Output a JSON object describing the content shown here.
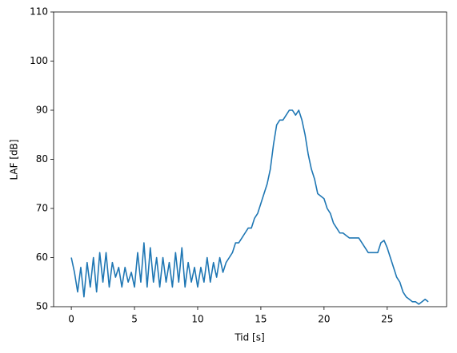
{
  "chart_data": {
    "type": "line",
    "xlabel": "Tid [s]",
    "ylabel": "LAF [dB]",
    "xlim": [
      -1.4,
      29.7
    ],
    "ylim": [
      50,
      110
    ],
    "xticks": [
      0,
      5,
      10,
      15,
      20,
      25
    ],
    "yticks": [
      50,
      60,
      70,
      80,
      90,
      100,
      110
    ],
    "x": [
      0,
      0.25,
      0.5,
      0.75,
      1,
      1.25,
      1.5,
      1.75,
      2,
      2.25,
      2.5,
      2.75,
      3,
      3.25,
      3.5,
      3.75,
      4,
      4.25,
      4.5,
      4.75,
      5,
      5.25,
      5.5,
      5.75,
      6,
      6.25,
      6.5,
      6.75,
      7,
      7.25,
      7.5,
      7.75,
      8,
      8.25,
      8.5,
      8.75,
      9,
      9.25,
      9.5,
      9.75,
      10,
      10.25,
      10.5,
      10.75,
      11,
      11.25,
      11.5,
      11.75,
      12,
      12.25,
      12.5,
      12.75,
      13,
      13.25,
      13.5,
      13.75,
      14,
      14.25,
      14.5,
      14.75,
      15,
      15.25,
      15.5,
      15.75,
      16,
      16.25,
      16.5,
      16.75,
      17,
      17.25,
      17.5,
      17.75,
      18,
      18.25,
      18.5,
      18.75,
      19,
      19.25,
      19.5,
      19.75,
      20,
      20.25,
      20.5,
      20.75,
      21,
      21.25,
      21.5,
      21.75,
      22,
      22.25,
      22.5,
      22.75,
      23,
      23.25,
      23.5,
      23.75,
      24,
      24.25,
      24.5,
      24.75,
      25,
      25.25,
      25.5,
      25.75,
      26,
      26.25,
      26.5,
      26.75,
      27,
      27.25,
      27.5,
      27.75,
      28,
      28.25
    ],
    "series": [
      {
        "color": "#1f77b4",
        "values": [
          60,
          57,
          53,
          58,
          52,
          59,
          54,
          60,
          53,
          61,
          55,
          61,
          54,
          59,
          56,
          58,
          54,
          58,
          55,
          57,
          54,
          61,
          55,
          63,
          54,
          62,
          55,
          60,
          54,
          60,
          55,
          59,
          54,
          61,
          55,
          62,
          54,
          59,
          55,
          58,
          54,
          58,
          55,
          60,
          55,
          59,
          56,
          60,
          57,
          59,
          60,
          61,
          63,
          63,
          64,
          65,
          66,
          66,
          68,
          69,
          71,
          73,
          75,
          78,
          83,
          87,
          88,
          88,
          89,
          90,
          90,
          89,
          90,
          88,
          85,
          81,
          78,
          76,
          73,
          72.5,
          72,
          70,
          69,
          67,
          66,
          65,
          65,
          64.5,
          64,
          64,
          64,
          64,
          63,
          62,
          61,
          61,
          61,
          61,
          63,
          63.5,
          62,
          60,
          58,
          56,
          55,
          53,
          52,
          51.5,
          51,
          51,
          50.5,
          51,
          51.5,
          51
        ]
      }
    ]
  }
}
